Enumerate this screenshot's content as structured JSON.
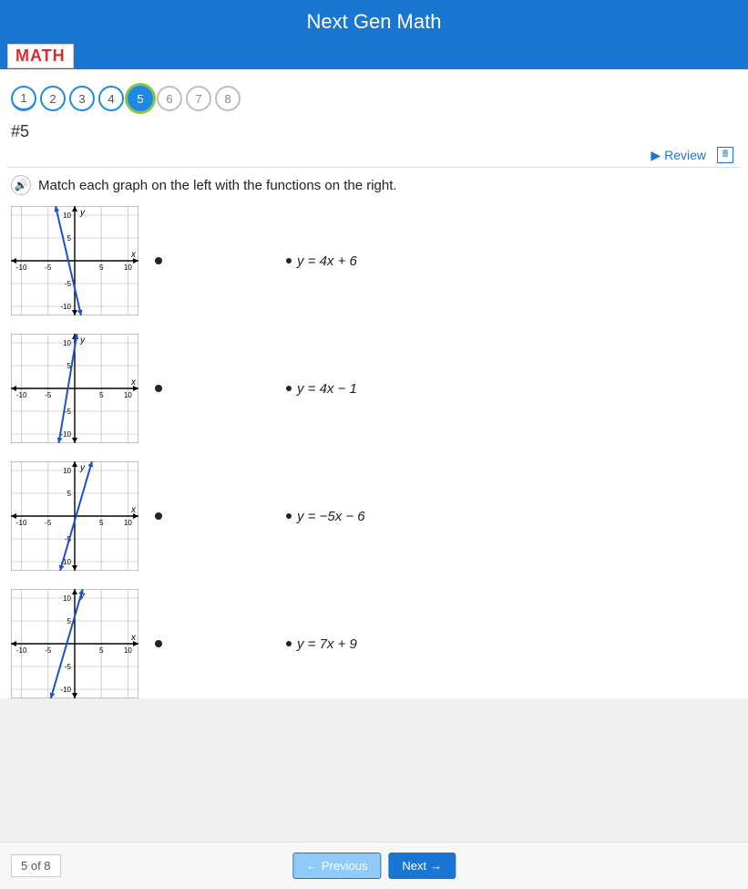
{
  "header": {
    "title": "Next Gen Math"
  },
  "logo": {
    "text": "MATH"
  },
  "pager": {
    "items": [
      {
        "label": "1",
        "state": "first"
      },
      {
        "label": "2",
        "state": "normal"
      },
      {
        "label": "3",
        "state": "normal"
      },
      {
        "label": "4",
        "state": "normal"
      },
      {
        "label": "5",
        "state": "active"
      },
      {
        "label": "6",
        "state": "muted"
      },
      {
        "label": "7",
        "state": "muted"
      },
      {
        "label": "8",
        "state": "muted"
      }
    ]
  },
  "question_number": "#5",
  "toolbar": {
    "review_label": "Review"
  },
  "question": {
    "text": "Match each graph on the left with the functions on the right."
  },
  "graphs": {
    "common": {
      "xlim": [
        -12,
        12
      ],
      "ylim": [
        -12,
        12
      ],
      "ticks": [
        -10,
        -5,
        5,
        10
      ],
      "grid_color": "#b0b0b0",
      "axis_color": "#000000",
      "line_color": "#1e50c8",
      "arrow_color": "#1e50c8",
      "background": "#ffffff",
      "width": 140,
      "height": 120,
      "x_label": "x",
      "y_label": "y"
    },
    "items": [
      {
        "slope": -5,
        "intercept": -6
      },
      {
        "slope": 7,
        "intercept": 9
      },
      {
        "slope": 4,
        "intercept": -1
      },
      {
        "slope": 4,
        "intercept": 6
      }
    ]
  },
  "functions": [
    {
      "text": "y = 4x + 6"
    },
    {
      "text": "y = 4x − 1"
    },
    {
      "text": "y = −5x − 6"
    },
    {
      "text": "y = 7x + 9"
    }
  ],
  "footer": {
    "page_of": "5   of 8",
    "prev_label": "Previous",
    "next_label": "Next"
  }
}
